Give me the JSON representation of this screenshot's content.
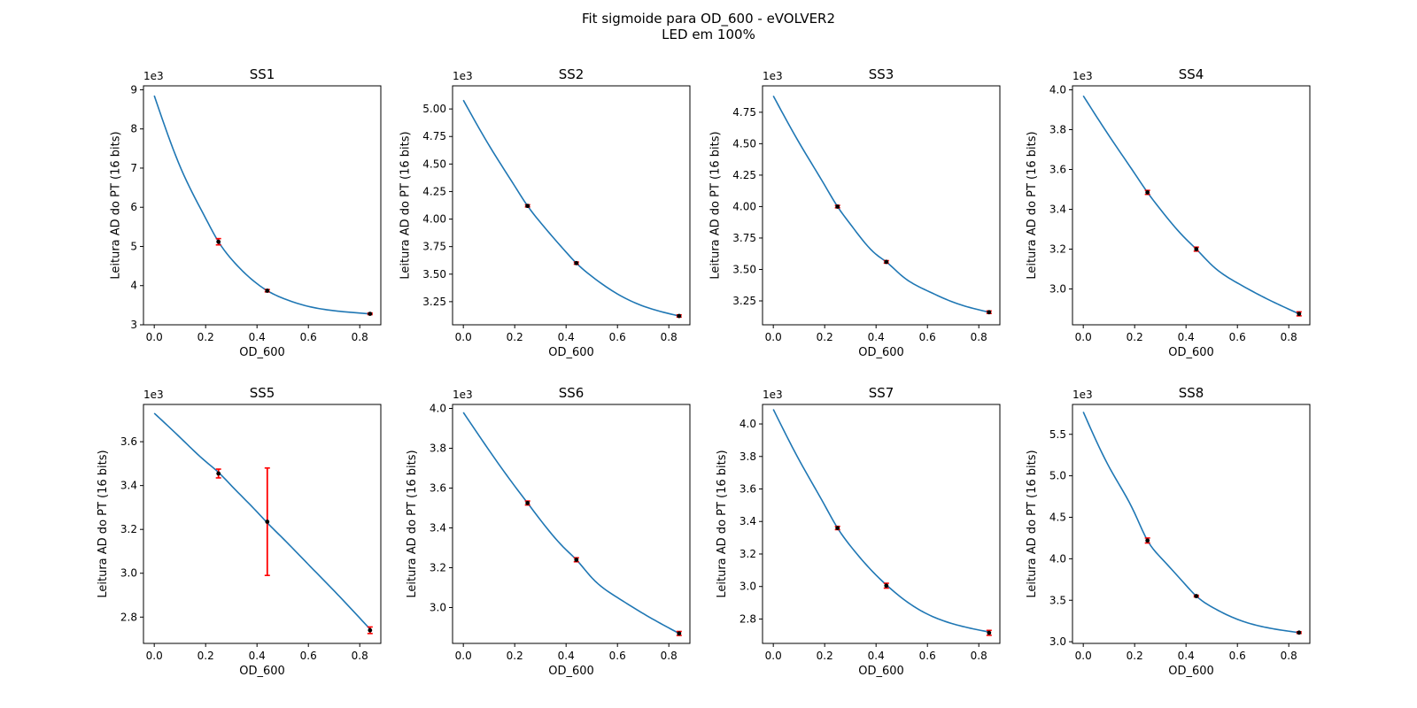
{
  "figure": {
    "title_line1": "Fit sigmoide para OD_600 - eVOLVER2",
    "title_line2": "LED em 100%"
  },
  "colors": {
    "curve": "#1f77b4",
    "points": "#000000",
    "errorbars": "#ff0000"
  },
  "chart_data": [
    {
      "type": "line",
      "title": "SS1",
      "xlabel": "OD_600",
      "ylabel": "Leitura AD do PT (16 bits)",
      "offset_text": "1e3",
      "xlim": [
        -0.042,
        0.882
      ],
      "ylim": [
        3.0,
        9.1
      ],
      "xticks": [
        0.0,
        0.2,
        0.4,
        0.6,
        0.8
      ],
      "xtick_labels": [
        "0.0",
        "0.2",
        "0.4",
        "0.6",
        "0.8"
      ],
      "yticks": [
        3,
        4,
        5,
        6,
        7,
        8,
        9
      ],
      "ytick_labels": [
        "3",
        "4",
        "5",
        "6",
        "7",
        "8",
        "9"
      ],
      "grid": false,
      "fit_curve": {
        "x": [
          0.0,
          0.1,
          0.2,
          0.25,
          0.3,
          0.4,
          0.44,
          0.5,
          0.6,
          0.7,
          0.84
        ],
        "y": [
          8.85,
          7.05,
          5.72,
          5.12,
          4.68,
          4.05,
          3.87,
          3.68,
          3.47,
          3.36,
          3.28
        ]
      },
      "points": [
        {
          "x": 0.25,
          "y": 5.12,
          "err": 0.08
        },
        {
          "x": 0.44,
          "y": 3.87,
          "err": 0.03
        },
        {
          "x": 0.84,
          "y": 3.28,
          "err": 0.02
        }
      ]
    },
    {
      "type": "line",
      "title": "SS2",
      "xlabel": "OD_600",
      "ylabel": "Leitura AD do PT (16 bits)",
      "offset_text": "1e3",
      "xlim": [
        -0.042,
        0.882
      ],
      "ylim": [
        3.04,
        5.21
      ],
      "xticks": [
        0.0,
        0.2,
        0.4,
        0.6,
        0.8
      ],
      "xtick_labels": [
        "0.0",
        "0.2",
        "0.4",
        "0.6",
        "0.8"
      ],
      "yticks": [
        3.25,
        3.5,
        3.75,
        4.0,
        4.25,
        4.5,
        4.75,
        5.0
      ],
      "ytick_labels": [
        "3.25",
        "3.50",
        "3.75",
        "4.00",
        "4.25",
        "4.50",
        "4.75",
        "5.00"
      ],
      "grid": false,
      "fit_curve": {
        "x": [
          0.0,
          0.1,
          0.2,
          0.25,
          0.3,
          0.4,
          0.44,
          0.5,
          0.6,
          0.7,
          0.84
        ],
        "y": [
          5.08,
          4.67,
          4.3,
          4.12,
          3.97,
          3.7,
          3.6,
          3.48,
          3.32,
          3.21,
          3.12
        ]
      },
      "points": [
        {
          "x": 0.25,
          "y": 4.12,
          "err": 0.01
        },
        {
          "x": 0.44,
          "y": 3.6,
          "err": 0.01
        },
        {
          "x": 0.84,
          "y": 3.12,
          "err": 0.01
        }
      ]
    },
    {
      "type": "line",
      "title": "SS3",
      "xlabel": "OD_600",
      "ylabel": "Leitura AD do PT (16 bits)",
      "offset_text": "1e3",
      "xlim": [
        -0.042,
        0.882
      ],
      "ylim": [
        3.06,
        4.96
      ],
      "xticks": [
        0.0,
        0.2,
        0.4,
        0.6,
        0.8
      ],
      "xtick_labels": [
        "0.0",
        "0.2",
        "0.4",
        "0.6",
        "0.8"
      ],
      "yticks": [
        3.25,
        3.5,
        3.75,
        4.0,
        4.25,
        4.5,
        4.75
      ],
      "ytick_labels": [
        "3.25",
        "3.50",
        "3.75",
        "4.00",
        "4.25",
        "4.50",
        "4.75"
      ],
      "grid": false,
      "fit_curve": {
        "x": [
          0.0,
          0.1,
          0.2,
          0.25,
          0.3,
          0.4,
          0.44,
          0.5,
          0.6,
          0.7,
          0.84
        ],
        "y": [
          4.88,
          4.51,
          4.17,
          4.0,
          3.86,
          3.62,
          3.56,
          3.45,
          3.33,
          3.24,
          3.16
        ]
      },
      "points": [
        {
          "x": 0.25,
          "y": 4.0,
          "err": 0.01
        },
        {
          "x": 0.44,
          "y": 3.56,
          "err": 0.01
        },
        {
          "x": 0.84,
          "y": 3.16,
          "err": 0.01
        }
      ]
    },
    {
      "type": "line",
      "title": "SS4",
      "xlabel": "OD_600",
      "ylabel": "Leitura AD do PT (16 bits)",
      "offset_text": "1e3",
      "xlim": [
        -0.042,
        0.882
      ],
      "ylim": [
        2.82,
        4.02
      ],
      "xticks": [
        0.0,
        0.2,
        0.4,
        0.6,
        0.8
      ],
      "xtick_labels": [
        "0.0",
        "0.2",
        "0.4",
        "0.6",
        "0.8"
      ],
      "yticks": [
        3.0,
        3.2,
        3.4,
        3.6,
        3.8,
        4.0
      ],
      "ytick_labels": [
        "3.0",
        "3.2",
        "3.4",
        "3.6",
        "3.8",
        "4.0"
      ],
      "grid": false,
      "fit_curve": {
        "x": [
          0.0,
          0.1,
          0.2,
          0.25,
          0.3,
          0.4,
          0.44,
          0.5,
          0.6,
          0.7,
          0.84
        ],
        "y": [
          3.97,
          3.77,
          3.58,
          3.485,
          3.4,
          3.25,
          3.2,
          3.12,
          3.03,
          2.96,
          2.875
        ]
      },
      "points": [
        {
          "x": 0.25,
          "y": 3.485,
          "err": 0.01
        },
        {
          "x": 0.44,
          "y": 3.2,
          "err": 0.01
        },
        {
          "x": 0.84,
          "y": 2.875,
          "err": 0.01
        }
      ]
    },
    {
      "type": "line",
      "title": "SS5",
      "xlabel": "OD_600",
      "ylabel": "Leitura AD do PT (16 bits)",
      "offset_text": "1e3",
      "xlim": [
        -0.042,
        0.882
      ],
      "ylim": [
        2.68,
        3.77
      ],
      "xticks": [
        0.0,
        0.2,
        0.4,
        0.6,
        0.8
      ],
      "xtick_labels": [
        "0.0",
        "0.2",
        "0.4",
        "0.6",
        "0.8"
      ],
      "yticks": [
        2.8,
        3.0,
        3.2,
        3.4,
        3.6
      ],
      "ytick_labels": [
        "2.8",
        "3.0",
        "3.2",
        "3.4",
        "3.6"
      ],
      "grid": false,
      "fit_curve": {
        "x": [
          0.0,
          0.1,
          0.2,
          0.25,
          0.3,
          0.4,
          0.44,
          0.5,
          0.6,
          0.7,
          0.84
        ],
        "y": [
          3.73,
          3.62,
          3.51,
          3.46,
          3.4,
          3.28,
          3.23,
          3.16,
          3.04,
          2.92,
          2.745
        ]
      },
      "points": [
        {
          "x": 0.25,
          "y": 3.455,
          "err": 0.02
        },
        {
          "x": 0.44,
          "y": 3.235,
          "err": 0.245
        },
        {
          "x": 0.84,
          "y": 2.74,
          "err": 0.015
        }
      ]
    },
    {
      "type": "line",
      "title": "SS6",
      "xlabel": "OD_600",
      "ylabel": "Leitura AD do PT (16 bits)",
      "offset_text": "1e3",
      "xlim": [
        -0.042,
        0.882
      ],
      "ylim": [
        2.82,
        4.02
      ],
      "xticks": [
        0.0,
        0.2,
        0.4,
        0.6,
        0.8
      ],
      "xtick_labels": [
        "0.0",
        "0.2",
        "0.4",
        "0.6",
        "0.8"
      ],
      "yticks": [
        3.0,
        3.2,
        3.4,
        3.6,
        3.8,
        4.0
      ],
      "ytick_labels": [
        "3.0",
        "3.2",
        "3.4",
        "3.6",
        "3.8",
        "4.0"
      ],
      "grid": false,
      "fit_curve": {
        "x": [
          0.0,
          0.1,
          0.2,
          0.25,
          0.3,
          0.4,
          0.44,
          0.5,
          0.6,
          0.7,
          0.84
        ],
        "y": [
          3.98,
          3.79,
          3.61,
          3.525,
          3.44,
          3.29,
          3.24,
          3.15,
          3.05,
          2.97,
          2.87
        ]
      },
      "points": [
        {
          "x": 0.25,
          "y": 3.525,
          "err": 0.01
        },
        {
          "x": 0.44,
          "y": 3.24,
          "err": 0.01
        },
        {
          "x": 0.84,
          "y": 2.87,
          "err": 0.01
        }
      ]
    },
    {
      "type": "line",
      "title": "SS7",
      "xlabel": "OD_600",
      "ylabel": "Leitura AD do PT (16 bits)",
      "offset_text": "1e3",
      "xlim": [
        -0.042,
        0.882
      ],
      "ylim": [
        2.65,
        4.12
      ],
      "xticks": [
        0.0,
        0.2,
        0.4,
        0.6,
        0.8
      ],
      "xtick_labels": [
        "0.0",
        "0.2",
        "0.4",
        "0.6",
        "0.8"
      ],
      "yticks": [
        2.8,
        3.0,
        3.2,
        3.4,
        3.6,
        3.8,
        4.0
      ],
      "ytick_labels": [
        "2.8",
        "3.0",
        "3.2",
        "3.4",
        "3.6",
        "3.8",
        "4.0"
      ],
      "grid": false,
      "fit_curve": {
        "x": [
          0.0,
          0.1,
          0.2,
          0.25,
          0.3,
          0.4,
          0.44,
          0.5,
          0.6,
          0.7,
          0.84
        ],
        "y": [
          4.09,
          3.78,
          3.5,
          3.36,
          3.25,
          3.07,
          3.01,
          2.93,
          2.83,
          2.77,
          2.72
        ]
      },
      "points": [
        {
          "x": 0.25,
          "y": 3.36,
          "err": 0.01
        },
        {
          "x": 0.44,
          "y": 3.005,
          "err": 0.015
        },
        {
          "x": 0.84,
          "y": 2.715,
          "err": 0.015
        }
      ]
    },
    {
      "type": "line",
      "title": "SS8",
      "xlabel": "OD_600",
      "ylabel": "Leitura AD do PT (16 bits)",
      "offset_text": "1e3",
      "xlim": [
        -0.042,
        0.882
      ],
      "ylim": [
        2.98,
        5.86
      ],
      "xticks": [
        0.0,
        0.2,
        0.4,
        0.6,
        0.8
      ],
      "xtick_labels": [
        "0.0",
        "0.2",
        "0.4",
        "0.6",
        "0.8"
      ],
      "yticks": [
        3.0,
        3.5,
        4.0,
        4.5,
        5.0,
        5.5
      ],
      "ytick_labels": [
        "3.0",
        "3.5",
        "4.0",
        "4.5",
        "5.0",
        "5.5"
      ],
      "grid": false,
      "fit_curve": {
        "x": [
          0.0,
          0.1,
          0.2,
          0.25,
          0.3,
          0.4,
          0.44,
          0.5,
          0.6,
          0.7,
          0.84
        ],
        "y": [
          5.77,
          5.11,
          4.55,
          4.22,
          4.02,
          3.68,
          3.55,
          3.42,
          3.27,
          3.18,
          3.11
        ]
      },
      "points": [
        {
          "x": 0.25,
          "y": 4.22,
          "err": 0.03
        },
        {
          "x": 0.44,
          "y": 3.55,
          "err": 0.01
        },
        {
          "x": 0.84,
          "y": 3.11,
          "err": 0.01
        }
      ]
    }
  ]
}
